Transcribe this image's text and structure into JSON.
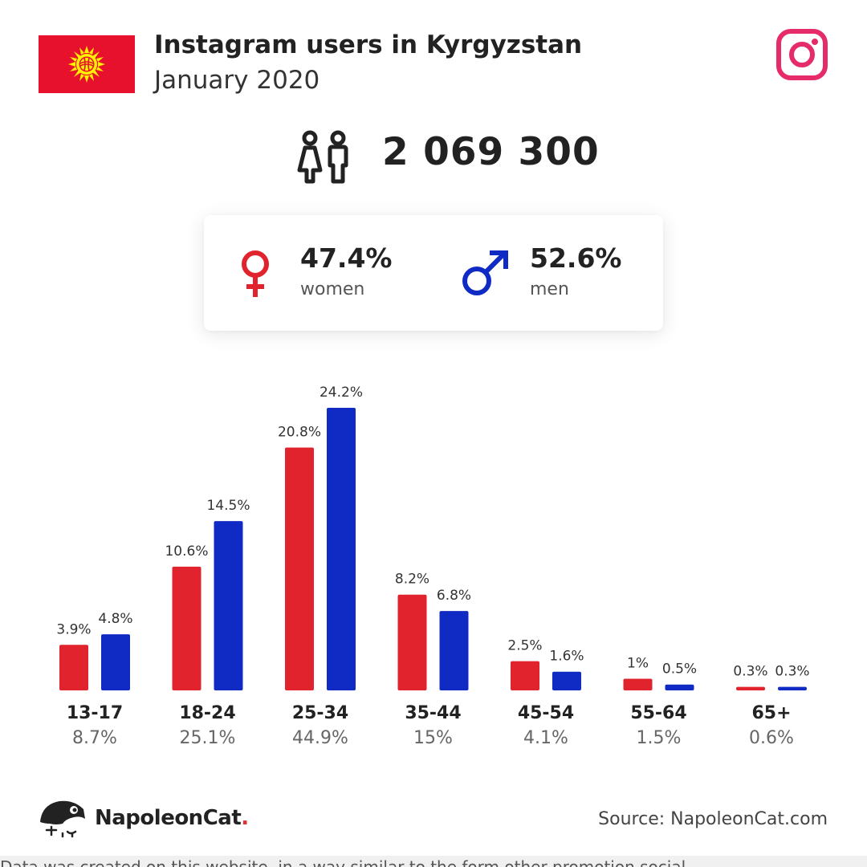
{
  "header": {
    "title": "Instagram users in Kyrgyzstan",
    "subtitle": "January 2020"
  },
  "icons": {
    "flag": "kyrgyzstan-flag-icon",
    "platform": "instagram-icon",
    "users": "users-icon",
    "female": "female-icon",
    "male": "male-icon",
    "brand": "napoleoncat-logo-icon"
  },
  "colors": {
    "women": "#e0232c",
    "men": "#0f2bc4",
    "instagram": "#e62b6a",
    "flag_red": "#e8112d",
    "flag_sun": "#ffef00"
  },
  "total_users": "2 069 300",
  "gender": {
    "women_pct": "47.4%",
    "women_label": "women",
    "men_pct": "52.6%",
    "men_label": "men"
  },
  "chart_data": {
    "type": "bar",
    "categories": [
      "13-17",
      "18-24",
      "25-34",
      "35-44",
      "45-54",
      "55-64",
      "65+"
    ],
    "category_totals": [
      "8.7%",
      "25.1%",
      "44.9%",
      "15%",
      "4.1%",
      "1.5%",
      "0.6%"
    ],
    "series": [
      {
        "name": "women",
        "color": "#e0232c",
        "values": [
          3.9,
          10.6,
          20.8,
          8.2,
          2.5,
          1,
          0.3
        ],
        "labels": [
          "3.9%",
          "10.6%",
          "20.8%",
          "8.2%",
          "2.5%",
          "1%",
          "0.3%"
        ]
      },
      {
        "name": "men",
        "color": "#0f2bc4",
        "values": [
          4.8,
          14.5,
          24.2,
          6.8,
          1.6,
          0.5,
          0.3
        ],
        "labels": [
          "4.8%",
          "14.5%",
          "24.2%",
          "6.8%",
          "1.6%",
          "0.5%",
          "0.3%"
        ]
      }
    ],
    "title": "",
    "xlabel": "",
    "ylabel": "",
    "ylim": [
      0,
      24.2
    ],
    "grid": false,
    "legend": "none"
  },
  "footer": {
    "brand_name": "NapoleonCat",
    "brand_dot": ".",
    "source": "Source: NapoleonCat.com"
  },
  "bottom_text": "Data was created on this website, in a way similar to the form other promotion social"
}
